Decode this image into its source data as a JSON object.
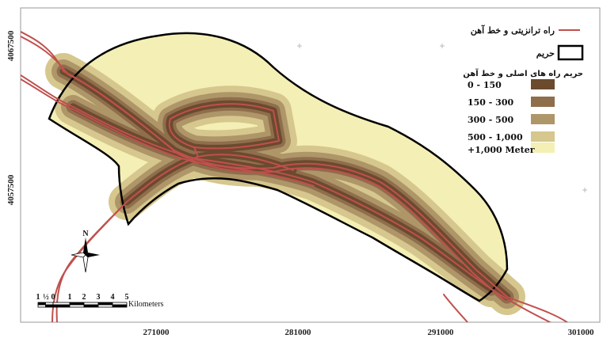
{
  "map": {
    "x_ticks": [
      "271000",
      "281000",
      "291000",
      "301000"
    ],
    "y_ticks": [
      "4067500",
      "4057500"
    ],
    "north_label": "N"
  },
  "legend": {
    "road_rail_label": "راه ترانزیتی و خط آهن",
    "buffer_boundary_label": "حریم",
    "classes_title": "حریم راه های اصلی و خط آهن",
    "classes": [
      {
        "label": "0 - 150",
        "color": "#6b4a2e"
      },
      {
        "label": "150 - 300",
        "color": "#8f6e4c"
      },
      {
        "label": "300 - 500",
        "color": "#ae9668"
      },
      {
        "label": "500 - 1,000",
        "color": "#d6c78e"
      },
      {
        "label": "+1,000 Meter",
        "color": "#f4efb4"
      }
    ],
    "road_color": "#c0504d"
  },
  "scale_bar": {
    "numbers": [
      "1",
      "½",
      "0",
      "1",
      "2",
      "3",
      "4",
      "5"
    ],
    "unit": "Kilometers"
  }
}
